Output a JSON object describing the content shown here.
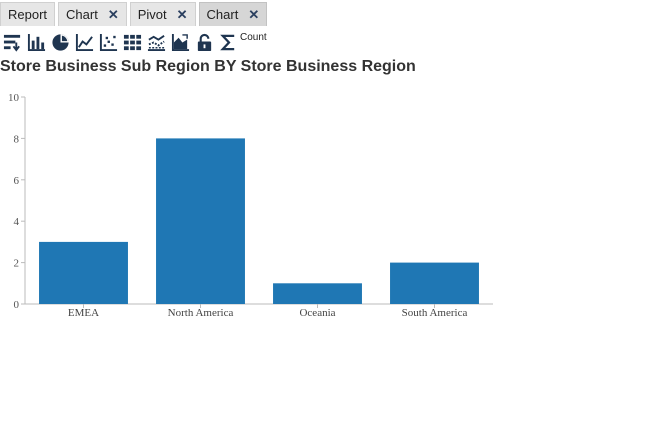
{
  "tabs": [
    {
      "label": "Report",
      "closable": false,
      "active": false
    },
    {
      "label": "Chart",
      "closable": true,
      "active": false
    },
    {
      "label": "Pivot",
      "closable": true,
      "active": false
    },
    {
      "label": "Chart",
      "closable": true,
      "active": true
    }
  ],
  "toolbar": {
    "icons": [
      "sort-icon",
      "bar-chart-icon",
      "pie-chart-icon",
      "line-chart-icon",
      "scatter-chart-icon",
      "table-grid-icon",
      "multi-line-icon",
      "area-chart-icon",
      "lock-icon",
      "sigma-icon"
    ],
    "count_label": "Count",
    "icon_color": "#1f3550"
  },
  "chart_data": {
    "type": "bar",
    "title": "Store Business Sub Region BY Store Business Region",
    "categories": [
      "EMEA",
      "North America",
      "Oceania",
      "South America"
    ],
    "values": [
      3,
      8,
      1,
      2
    ],
    "ylim": [
      0,
      10
    ],
    "yticks": [
      0,
      2,
      4,
      6,
      8,
      10
    ],
    "xlabel": "",
    "ylabel": "",
    "grid": false,
    "bar_color": "#1f77b4"
  }
}
